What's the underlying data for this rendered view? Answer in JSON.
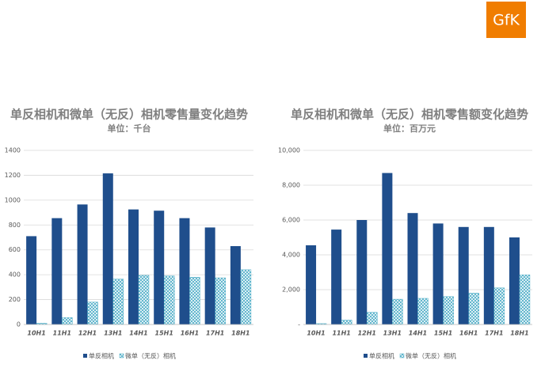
{
  "logo": "GfK",
  "chart_data": [
    {
      "type": "bar",
      "title": "单反相机和微单（无反）相机零售量变化趋势",
      "subtitle": "单位：千台",
      "categories": [
        "10H1",
        "11H1",
        "12H1",
        "13H1",
        "14H1",
        "15H1",
        "16H1",
        "17H1",
        "18H1"
      ],
      "series": [
        {
          "name": "单反相机",
          "color": "#1f4e8c",
          "values": [
            710,
            855,
            965,
            1215,
            925,
            915,
            855,
            780,
            630
          ]
        },
        {
          "name": "微单（无反）相机",
          "color": "#4bacc6",
          "pattern": "crosshatch",
          "values": [
            10,
            55,
            180,
            365,
            395,
            390,
            380,
            375,
            440
          ]
        }
      ],
      "ylim": [
        0,
        1400
      ],
      "yticks": [
        0,
        200,
        400,
        600,
        800,
        1000,
        1200,
        1400
      ],
      "grid": true,
      "legend": "bottom"
    },
    {
      "type": "bar",
      "title": "单反相机和微单（无反）相机零售额变化趋势",
      "subtitle": "单位：百万元",
      "categories": [
        "10H1",
        "11H1",
        "12H1",
        "13H1",
        "14H1",
        "15H1",
        "16H1",
        "17H1",
        "18H1"
      ],
      "series": [
        {
          "name": "单反相机",
          "color": "#1f4e8c",
          "values": [
            4550,
            5450,
            6000,
            8700,
            6400,
            5800,
            5600,
            5600,
            5000
          ]
        },
        {
          "name": "微单（无反）相机",
          "color": "#4bacc6",
          "pattern": "crosshatch",
          "values": [
            50,
            250,
            700,
            1450,
            1500,
            1600,
            1800,
            2100,
            2850
          ]
        }
      ],
      "ylim": [
        0,
        10000
      ],
      "yticks": [
        {
          "value": 0,
          "label": "-"
        },
        {
          "value": 2000,
          "label": "2,000"
        },
        {
          "value": 4000,
          "label": "4,000"
        },
        {
          "value": 6000,
          "label": "6,000"
        },
        {
          "value": 8000,
          "label": "8,000"
        },
        {
          "value": 10000,
          "label": "10,000"
        }
      ],
      "grid": true,
      "legend": "bottom"
    }
  ]
}
